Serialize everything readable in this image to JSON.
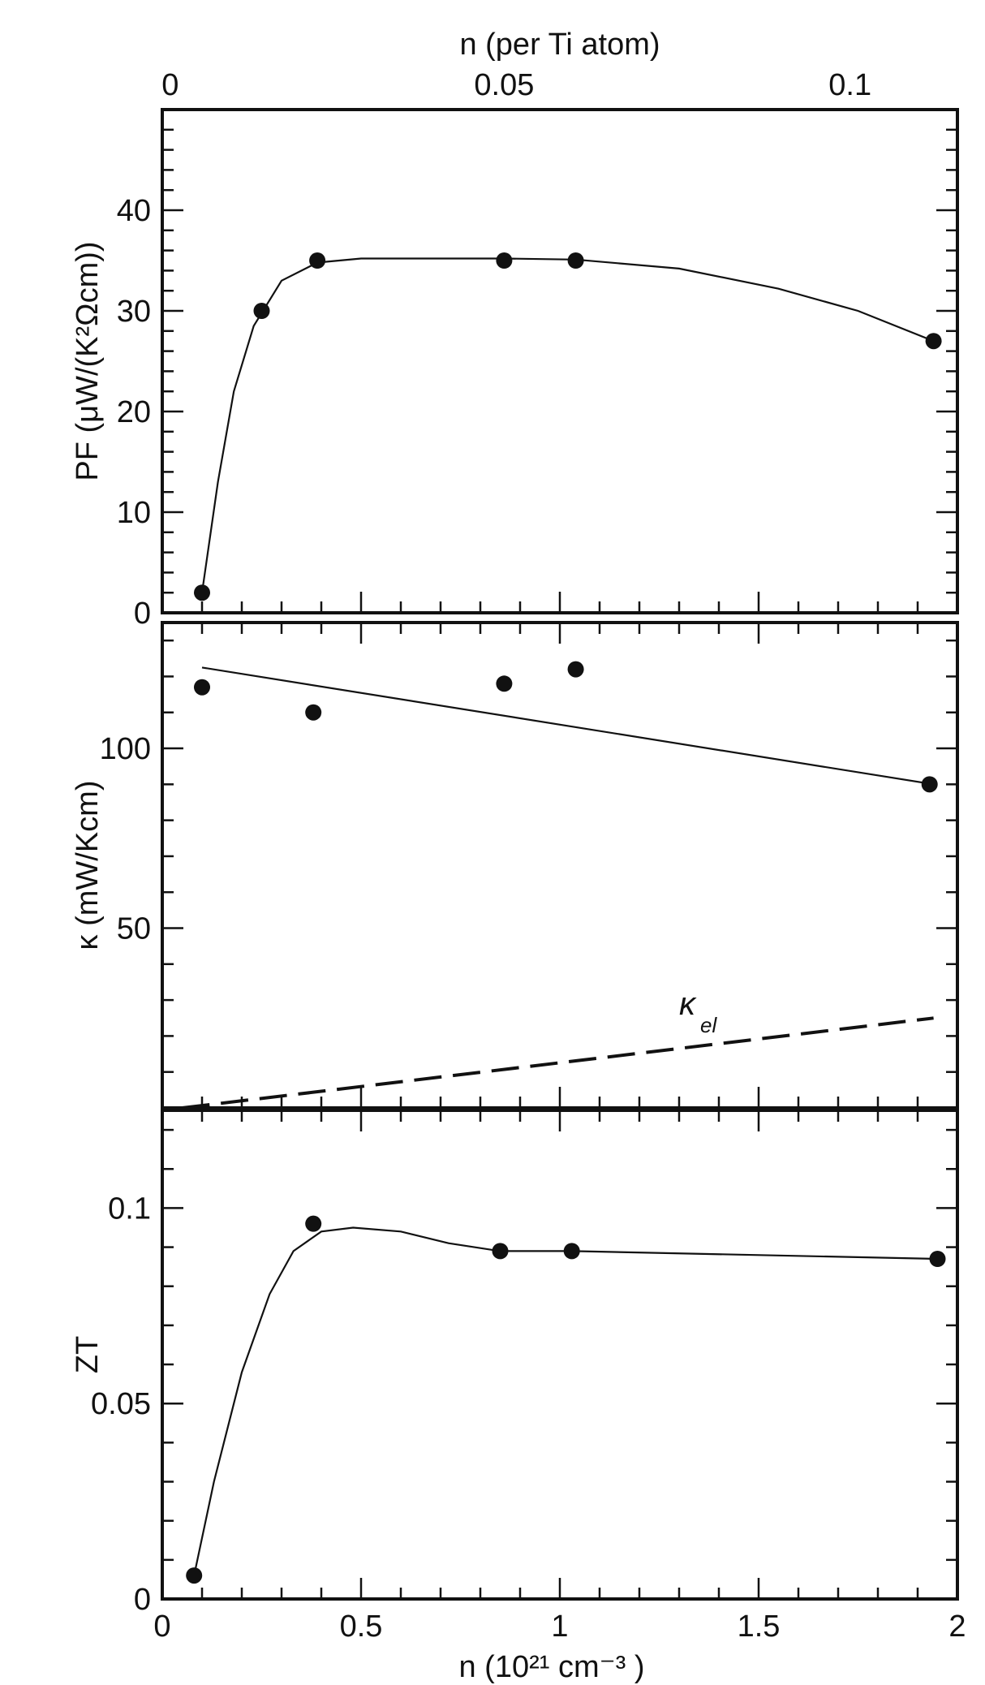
{
  "chart_data": [
    {
      "type": "scatter",
      "panel": "power-factor",
      "ylabel": "PF (μW/(K²Ωcm))",
      "xlim": [
        0,
        2
      ],
      "ylim": [
        0,
        50
      ],
      "ytick_labels": [
        "0",
        "10",
        "20",
        "30",
        "40"
      ],
      "ytick_values": [
        0,
        10,
        20,
        30,
        40
      ],
      "top_axis": {
        "label": "n (per Ti atom)",
        "tick_labels": [
          "0",
          "0.05",
          "0.1"
        ],
        "tick_values": [
          0,
          0.05,
          0.1
        ],
        "label_positions_n": [
          0.02,
          0.86,
          1.73
        ]
      },
      "series": [
        {
          "points": [
            [
              0.1,
              2
            ],
            [
              0.25,
              30
            ],
            [
              0.39,
              35
            ],
            [
              0.86,
              35
            ],
            [
              1.04,
              35
            ],
            [
              1.94,
              27
            ]
          ],
          "fit_curve": [
            [
              0.1,
              2
            ],
            [
              0.14,
              13
            ],
            [
              0.18,
              22
            ],
            [
              0.23,
              28.5
            ],
            [
              0.3,
              33
            ],
            [
              0.39,
              34.8
            ],
            [
              0.5,
              35.2
            ],
            [
              0.86,
              35.2
            ],
            [
              1.04,
              35.1
            ],
            [
              1.3,
              34.2
            ],
            [
              1.55,
              32.2
            ],
            [
              1.75,
              30
            ],
            [
              1.94,
              27
            ]
          ]
        }
      ]
    },
    {
      "type": "scatter",
      "panel": "thermal-conductivity",
      "ylabel": "κ (mW/Kcm)",
      "xlim": [
        0,
        2
      ],
      "ylim": [
        0,
        135
      ],
      "ytick_labels": [
        "50",
        "100"
      ],
      "ytick_values": [
        50,
        100
      ],
      "annotations": [
        {
          "text": "κ",
          "subscript": "el",
          "x": 1.3,
          "y": 26
        }
      ],
      "series": [
        {
          "points": [
            [
              0.1,
              117
            ],
            [
              0.38,
              110
            ],
            [
              0.86,
              118
            ],
            [
              1.04,
              122
            ],
            [
              1.93,
              90
            ]
          ],
          "fit_line": [
            [
              0.1,
              122.5
            ],
            [
              1.94,
              90
            ]
          ]
        },
        {
          "style": "dashed",
          "line": [
            [
              0.05,
              0
            ],
            [
              1.94,
              25
            ]
          ]
        }
      ]
    },
    {
      "type": "scatter",
      "panel": "figure-of-merit",
      "ylabel": "ZT",
      "xlabel": "n (10²¹ cm⁻³ )",
      "xlim": [
        0,
        2
      ],
      "ylim": [
        0,
        0.125
      ],
      "xtick_labels": [
        "0",
        "0.5",
        "1",
        "1.5",
        "2"
      ],
      "xtick_values": [
        0,
        0.5,
        1,
        1.5,
        2
      ],
      "ytick_labels": [
        "0",
        "0.05",
        "0.1"
      ],
      "ytick_values": [
        0,
        0.05,
        0.1
      ],
      "series": [
        {
          "points": [
            [
              0.08,
              0.006
            ],
            [
              0.38,
              0.096
            ],
            [
              0.85,
              0.089
            ],
            [
              1.03,
              0.089
            ],
            [
              1.95,
              0.087
            ]
          ],
          "fit_curve": [
            [
              0.08,
              0.006
            ],
            [
              0.13,
              0.03
            ],
            [
              0.2,
              0.058
            ],
            [
              0.27,
              0.078
            ],
            [
              0.33,
              0.089
            ],
            [
              0.4,
              0.094
            ],
            [
              0.48,
              0.095
            ],
            [
              0.6,
              0.094
            ],
            [
              0.72,
              0.091
            ],
            [
              0.85,
              0.089
            ],
            [
              1.03,
              0.089
            ],
            [
              1.95,
              0.087
            ]
          ]
        }
      ]
    }
  ]
}
